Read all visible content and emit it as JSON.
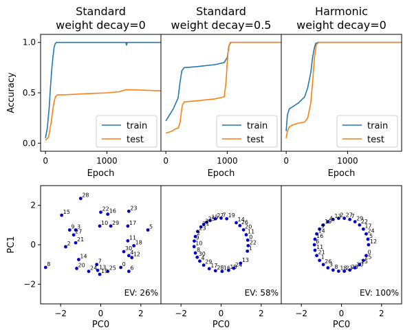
{
  "colors": {
    "train": "#1f77b4",
    "test": "#ff7f0e",
    "points": "#0000cc"
  },
  "chart_data": [
    {
      "type": "line",
      "title": [
        "Standard",
        "weight decay=0"
      ],
      "xlabel": "Epoch",
      "ylabel": "Accuracy",
      "xlim": [
        -80,
        1880
      ],
      "ylim": [
        -0.08,
        1.08
      ],
      "xticks": [
        "0",
        "1000"
      ],
      "yticks": [
        "0.0",
        "0.5",
        "1.0"
      ],
      "legend": "bottom-right",
      "series": [
        {
          "name": "train",
          "x": [
            0,
            30,
            60,
            80,
            100,
            120,
            140,
            160,
            180,
            1310,
            1320,
            1330,
            1880
          ],
          "y": [
            0.05,
            0.15,
            0.35,
            0.55,
            0.72,
            0.85,
            0.95,
            0.99,
            1.0,
            1.0,
            0.97,
            1.0,
            1.0
          ]
        },
        {
          "name": "test",
          "x": [
            0,
            50,
            90,
            130,
            160,
            200,
            300,
            600,
            1000,
            1200,
            1300,
            1400,
            1880
          ],
          "y": [
            0.03,
            0.06,
            0.2,
            0.38,
            0.46,
            0.48,
            0.48,
            0.49,
            0.5,
            0.51,
            0.53,
            0.53,
            0.52
          ]
        }
      ]
    },
    {
      "type": "line",
      "title": [
        "Standard",
        "weight decay=0.5"
      ],
      "xlabel": "Epoch",
      "ylabel": "",
      "xlim": [
        -80,
        1880
      ],
      "ylim": [
        -0.08,
        1.08
      ],
      "xticks": [
        "0",
        "1000"
      ],
      "yticks": [],
      "legend": "bottom-right",
      "series": [
        {
          "name": "train",
          "x": [
            0,
            60,
            120,
            150,
            200,
            230,
            260,
            300,
            500,
            800,
            950,
            1000,
            1030,
            1060,
            1100,
            1880
          ],
          "y": [
            0.22,
            0.28,
            0.34,
            0.38,
            0.45,
            0.6,
            0.72,
            0.75,
            0.76,
            0.78,
            0.8,
            0.85,
            0.97,
            1.0,
            1.0,
            1.0
          ]
        },
        {
          "name": "test",
          "x": [
            0,
            100,
            150,
            200,
            230,
            250,
            270,
            300,
            500,
            800,
            950,
            980,
            1000,
            1020,
            1050,
            1080,
            1880
          ],
          "y": [
            0.1,
            0.12,
            0.14,
            0.15,
            0.2,
            0.3,
            0.38,
            0.41,
            0.42,
            0.44,
            0.46,
            0.6,
            0.8,
            0.95,
            1.0,
            1.0,
            1.0
          ]
        }
      ]
    },
    {
      "type": "line",
      "title": [
        "Harmonic",
        "weight decay=0"
      ],
      "xlabel": "Epoch",
      "ylabel": "",
      "xlim": [
        -80,
        1880
      ],
      "ylim": [
        -0.08,
        1.08
      ],
      "xticks": [
        "0",
        "1000"
      ],
      "yticks": [],
      "legend": "bottom-right",
      "series": [
        {
          "name": "train",
          "x": [
            0,
            20,
            50,
            100,
            200,
            300,
            350,
            400,
            430,
            460,
            480,
            520,
            1880
          ],
          "y": [
            0.12,
            0.28,
            0.34,
            0.36,
            0.4,
            0.46,
            0.55,
            0.7,
            0.85,
            0.95,
            0.99,
            1.0,
            1.0
          ]
        },
        {
          "name": "test",
          "x": [
            0,
            20,
            50,
            100,
            200,
            300,
            350,
            400,
            430,
            460,
            490,
            530,
            1880
          ],
          "y": [
            0.05,
            0.12,
            0.16,
            0.18,
            0.2,
            0.21,
            0.25,
            0.4,
            0.6,
            0.85,
            0.98,
            1.0,
            1.0
          ]
        }
      ]
    },
    {
      "type": "scatter",
      "xlabel": "PC0",
      "ylabel": "PC1",
      "xlim": [
        -3,
        3
      ],
      "ylim": [
        -3,
        3
      ],
      "xticks": [
        "−2",
        "0",
        "2"
      ],
      "yticks": [
        "−2",
        "0",
        "2"
      ],
      "annotation": "EV: 26%",
      "points": [
        {
          "label": "28",
          "x": -1.0,
          "y": 2.35
        },
        {
          "label": "15",
          "x": -1.95,
          "y": 1.5
        },
        {
          "label": "22",
          "x": 0.0,
          "y": 1.65
        },
        {
          "label": "16",
          "x": 0.35,
          "y": 1.55
        },
        {
          "label": "23",
          "x": 1.4,
          "y": 1.7
        },
        {
          "label": "9",
          "x": -1.55,
          "y": 0.75
        },
        {
          "label": "3",
          "x": -1.25,
          "y": 0.75
        },
        {
          "label": "10",
          "x": -0.05,
          "y": 0.95
        },
        {
          "label": "29",
          "x": 0.5,
          "y": 0.95
        },
        {
          "label": "17",
          "x": 1.35,
          "y": 0.95
        },
        {
          "label": "5",
          "x": 2.35,
          "y": 0.75
        },
        {
          "label": "27",
          "x": -1.35,
          "y": 0.5
        },
        {
          "label": "21",
          "x": -1.25,
          "y": 0.1
        },
        {
          "label": "2",
          "x": -1.75,
          "y": -0.1
        },
        {
          "label": "11",
          "x": 1.35,
          "y": 0.2
        },
        {
          "label": "18",
          "x": 1.65,
          "y": -0.05
        },
        {
          "label": "30",
          "x": 1.15,
          "y": -0.35
        },
        {
          "label": "4",
          "x": 1.4,
          "y": -0.55
        },
        {
          "label": "12",
          "x": 1.55,
          "y": -0.65
        },
        {
          "label": "14",
          "x": -1.1,
          "y": -0.75
        },
        {
          "label": "8",
          "x": -2.75,
          "y": -1.15
        },
        {
          "label": "20",
          "x": -1.2,
          "y": -1.2
        },
        {
          "label": "7",
          "x": -0.2,
          "y": -1.0
        },
        {
          "label": "0",
          "x": 1.0,
          "y": -1.15
        },
        {
          "label": "24",
          "x": -0.6,
          "y": -1.35
        },
        {
          "label": "13",
          "x": -0.15,
          "y": -1.3
        },
        {
          "label": "25",
          "x": 0.35,
          "y": -1.35
        },
        {
          "label": "19",
          "x": -0.05,
          "y": -1.5
        },
        {
          "label": "6",
          "x": 1.4,
          "y": -1.35
        }
      ]
    },
    {
      "type": "scatter",
      "xlabel": "PC0",
      "ylabel": "",
      "xlim": [
        -3,
        3
      ],
      "ylim": [
        -3,
        3
      ],
      "xticks": [
        "−2",
        "0",
        "2"
      ],
      "yticks": [],
      "annotation": "EV: 58%",
      "ring_radius": 1.35,
      "points": [
        {
          "label": "19",
          "a": 78
        },
        {
          "label": "7",
          "a": 90
        },
        {
          "label": "27",
          "a": 102
        },
        {
          "label": "15",
          "a": 114
        },
        {
          "label": "25",
          "a": 122
        },
        {
          "label": "3",
          "a": 130
        },
        {
          "label": "21",
          "a": 138
        },
        {
          "label": "23",
          "a": 150
        },
        {
          "label": "2",
          "a": 162
        },
        {
          "label": "9",
          "a": 172
        },
        {
          "label": "10",
          "a": 184
        },
        {
          "label": "8",
          "a": 198
        },
        {
          "label": "30",
          "a": 208
        },
        {
          "label": "4",
          "a": 218
        },
        {
          "label": "29",
          "a": 230
        },
        {
          "label": "17",
          "a": 244
        },
        {
          "label": "28",
          "a": 258
        },
        {
          "label": "16",
          "a": 272
        },
        {
          "label": "18",
          "a": 286
        },
        {
          "label": "24",
          "a": 298
        },
        {
          "label": "13",
          "a": 316
        },
        {
          "label": "1",
          "a": 346
        },
        {
          "label": "22",
          "a": 358
        },
        {
          "label": "0",
          "a": 10
        },
        {
          "label": "11",
          "a": 22
        },
        {
          "label": "20",
          "a": 34
        },
        {
          "label": "26",
          "a": 46
        },
        {
          "label": "14",
          "a": 56
        }
      ]
    },
    {
      "type": "scatter",
      "xlabel": "PC0",
      "ylabel": "",
      "xlim": [
        -3,
        3
      ],
      "ylim": [
        -3,
        3
      ],
      "xticks": [
        "−2",
        "0",
        "2"
      ],
      "yticks": [],
      "annotation": "EV: 100%",
      "ring_radius": 1.35,
      "points": [
        {
          "label": "12",
          "a": 0
        },
        {
          "label": "5",
          "a": 12
        },
        {
          "label": "24",
          "a": 24
        },
        {
          "label": "17",
          "a": 36
        },
        {
          "label": "22",
          "a": 48
        },
        {
          "label": "29",
          "a": 60
        },
        {
          "label": "7",
          "a": 72
        },
        {
          "label": "27",
          "a": 84
        },
        {
          "label": "2",
          "a": 96
        },
        {
          "label": "13",
          "a": 108
        },
        {
          "label": "4",
          "a": 120
        },
        {
          "label": "19",
          "a": 132
        },
        {
          "label": "9",
          "a": 144
        },
        {
          "label": "14",
          "a": 156
        },
        {
          "label": "16",
          "a": 168
        },
        {
          "label": "6",
          "a": 180
        },
        {
          "label": "11",
          "a": 192
        },
        {
          "label": "21",
          "a": 204
        },
        {
          "label": "1",
          "a": 216
        },
        {
          "label": "26",
          "a": 228
        },
        {
          "label": "3",
          "a": 240
        },
        {
          "label": "8",
          "a": 252
        },
        {
          "label": "18",
          "a": 264
        },
        {
          "label": "23",
          "a": 276
        },
        {
          "label": "28",
          "a": 288
        },
        {
          "label": "10",
          "a": 300
        },
        {
          "label": "15",
          "a": 312
        },
        {
          "label": "25",
          "a": 324
        },
        {
          "label": "0",
          "a": 336
        }
      ]
    }
  ]
}
